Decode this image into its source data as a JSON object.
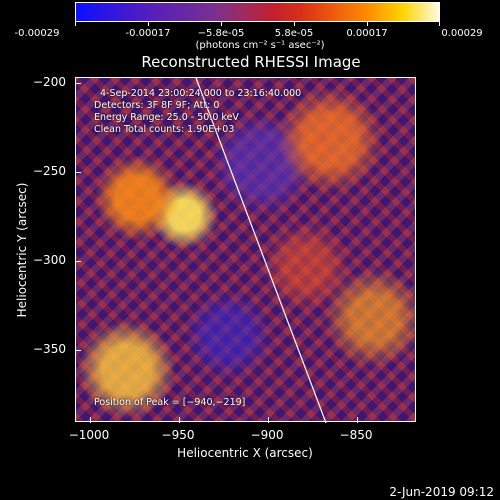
{
  "colorbar": {
    "tick_labels": [
      "-0.00029",
      "-0.00017",
      "−5.8e-05",
      "5.8e-05",
      "0.00017",
      "0.00029"
    ],
    "unit_label": "(photons cm⁻² s⁻¹ asec⁻²)",
    "colors": [
      "#0a10ff",
      "#6a2aa0",
      "#c02030",
      "#ff8a00",
      "#fffbe0"
    ]
  },
  "title": "Reconstructed RHESSI Image",
  "info": {
    "time_line": "4-Sep-2014 23:00:24.000 to 23:16:40.000",
    "detectors_line": "Detectors: 3F 8F 9F; Att: 0",
    "energy_line": "Energy Range: 25.0 - 50.0 keV",
    "clean_line": "Clean     Total counts: 1.90E+03",
    "peak_line": "Position of Peak = [−940,−219]"
  },
  "axes": {
    "x_label": "Heliocentric X (arcsec)",
    "y_label": "Heliocentric Y (arcsec)",
    "x_ticks": [
      "−1000",
      "−950",
      "−900",
      "−850"
    ],
    "y_ticks": [
      "−200",
      "−250",
      "−300",
      "−350"
    ]
  },
  "datestamp": "2-Jun-2019 09:12"
}
